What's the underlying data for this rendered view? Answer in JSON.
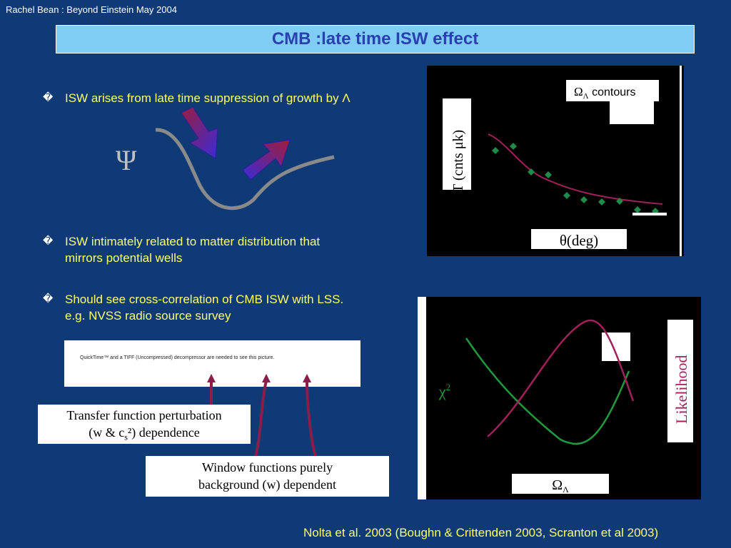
{
  "header": "Rachel Bean : Beyond Einstein May 2004",
  "title": "CMB :late time ISW effect",
  "bullets": [
    {
      "icon": "bullet-glyph",
      "text": "ISW arises from late time suppression of growth by Λ"
    },
    {
      "icon": "bullet-glyph",
      "line1": "ISW intimately related to matter distribution that",
      "line2": "mirrors potential wells"
    },
    {
      "icon": "bullet-glyph",
      "line1": "Should see cross-correlation of CMB ISW with LSS.",
      "line2": "e.g. NVSS radio source survey"
    }
  ],
  "diagram": {
    "psi_symbol": "Ψ"
  },
  "quicktime_notice": "QuickTime™ and a TIFF (Uncompressed) decompressor are needed to see this picture.",
  "transfer_box": {
    "line1": "Transfer function perturbation",
    "line2_prefix": "(w & c",
    "line2_sub": "s",
    "line2_suffix": "²) dependence"
  },
  "window_box": {
    "line1": "Window functions purely",
    "line2": "background (w) dependent"
  },
  "citation": "Nolta et al. 2003 (Boughn & Crittenden 2003, Scranton et al 2003)",
  "top_chart": {
    "legend_symbol": "Ω",
    "legend_sub": "Λ",
    "legend_text": " contours",
    "ylabel": "T (cnts  μk)",
    "xlabel": "θ(deg)"
  },
  "bottom_chart": {
    "ylabel_left": "χ",
    "ylabel_left_sup": "2",
    "ylabel_right": "Likelihood",
    "xlabel_symbol": "Ω",
    "xlabel_sub": "Λ"
  },
  "colors": {
    "background": "#0f3a76",
    "bullet_text": "#ffff66",
    "title_text": "#2a3fb0",
    "title_box": "#7fcdf5",
    "curve_magenta": "#a0205a",
    "curve_green": "#1f9a3f",
    "points_green": "#1f8a4a",
    "arrow_dark": "#8b1d4a"
  }
}
